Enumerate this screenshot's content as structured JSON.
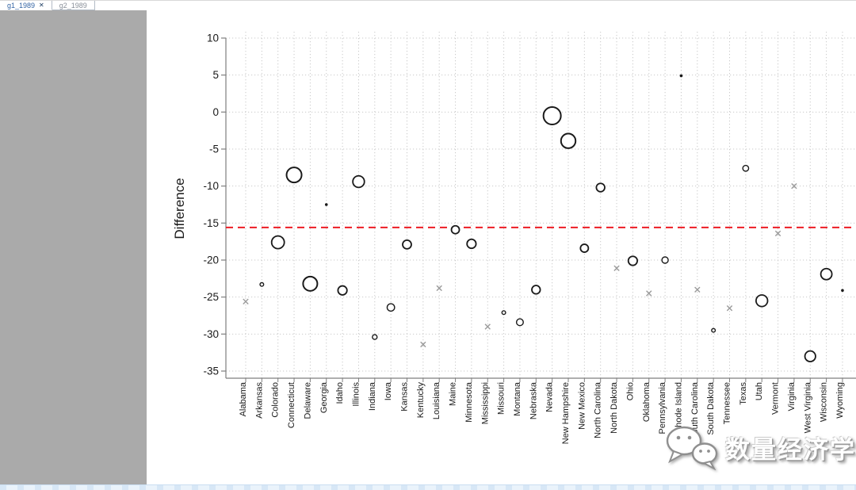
{
  "window": {
    "tabs": [
      {
        "label": "g1_1989",
        "active": true,
        "close_label": "✕"
      },
      {
        "label": "g2_1989",
        "active": false
      }
    ]
  },
  "watermark": {
    "text": "数量经济学",
    "icon": "wechat-logo"
  },
  "colors": {
    "tab_active_text": "#3465a4",
    "tab_inactive_text": "#8a9099",
    "sidebar": "#aaaaaa",
    "axis": "#7f7f7f",
    "grid": "#c9c9c9",
    "tick_label": "#1a1a1a",
    "marker": "#1a1a1a",
    "x_marker": "#9b9b9b",
    "refline": "#ed1c24",
    "bottom_strip": "#eaf3fb"
  },
  "chart_data": {
    "type": "scatter",
    "title": "",
    "xlabel": "",
    "ylabel": "Difference",
    "ylim": [
      -35,
      10
    ],
    "yticks": [
      10,
      5,
      0,
      -5,
      -10,
      -15,
      -20,
      -25,
      -30,
      -35
    ],
    "grid": "dotted-both",
    "legend": "none",
    "reference_line": {
      "value": -15.6,
      "style": "dashed",
      "color": "#ed1c24"
    },
    "marker_note": "hollow circles of varying size, small filled dots, and gray x markers",
    "points": [
      {
        "state": "Alabama",
        "value": -25.6,
        "marker": "x"
      },
      {
        "state": "Arkansas",
        "value": -23.3,
        "marker": "circle",
        "r": 2.3
      },
      {
        "state": "Colorado",
        "value": -17.6,
        "marker": "circle",
        "r": 8.0
      },
      {
        "state": "Connecticut",
        "value": -8.5,
        "marker": "circle",
        "r": 9.5
      },
      {
        "state": "Delaware",
        "value": -23.2,
        "marker": "circle",
        "r": 9.0
      },
      {
        "state": "Georgia",
        "value": -12.5,
        "marker": "dot",
        "r": 1.8
      },
      {
        "state": "Idaho",
        "value": -24.1,
        "marker": "circle",
        "r": 5.7
      },
      {
        "state": "Illinois",
        "value": -9.4,
        "marker": "circle",
        "r": 7.3
      },
      {
        "state": "Indiana",
        "value": -30.4,
        "marker": "circle",
        "r": 3.0
      },
      {
        "state": "Iowa",
        "value": -26.4,
        "marker": "circle",
        "r": 4.7
      },
      {
        "state": "Kansas",
        "value": -17.9,
        "marker": "circle",
        "r": 5.5
      },
      {
        "state": "Kentucky",
        "value": -31.4,
        "marker": "x"
      },
      {
        "state": "Louisiana",
        "value": -23.8,
        "marker": "x"
      },
      {
        "state": "Maine",
        "value": -15.9,
        "marker": "circle",
        "r": 5.0
      },
      {
        "state": "Minnesota",
        "value": -17.8,
        "marker": "circle",
        "r": 5.7
      },
      {
        "state": "Mississippi",
        "value": -29.0,
        "marker": "x"
      },
      {
        "state": "Missouri",
        "value": -27.1,
        "marker": "circle",
        "r": 2.3
      },
      {
        "state": "Montana",
        "value": -28.4,
        "marker": "circle",
        "r": 4.3
      },
      {
        "state": "Nebraska",
        "value": -24.0,
        "marker": "circle",
        "r": 5.3
      },
      {
        "state": "Nevada",
        "value": -0.5,
        "marker": "circle",
        "r": 11.0
      },
      {
        "state": "New Hampshire",
        "value": -3.9,
        "marker": "circle",
        "r": 9.2
      },
      {
        "state": "New Mexico",
        "value": -18.4,
        "marker": "circle",
        "r": 5.0
      },
      {
        "state": "North Carolina",
        "value": -10.2,
        "marker": "circle",
        "r": 5.3
      },
      {
        "state": "North Dakota",
        "value": -21.1,
        "marker": "x"
      },
      {
        "state": "Ohio",
        "value": -20.1,
        "marker": "circle",
        "r": 5.7
      },
      {
        "state": "Oklahoma",
        "value": -24.5,
        "marker": "x"
      },
      {
        "state": "Pennsylvania",
        "value": -20.0,
        "marker": "circle",
        "r": 4.0
      },
      {
        "state": "Rhode Island",
        "value": 4.9,
        "marker": "dot",
        "r": 1.8
      },
      {
        "state": "South Carolina",
        "value": -24.0,
        "marker": "x"
      },
      {
        "state": "South Dakota",
        "value": -29.5,
        "marker": "circle",
        "r": 2.3
      },
      {
        "state": "Tennessee",
        "value": -26.5,
        "marker": "x"
      },
      {
        "state": "Texas",
        "value": -7.6,
        "marker": "circle",
        "r": 3.7
      },
      {
        "state": "Utah",
        "value": -25.5,
        "marker": "circle",
        "r": 7.3
      },
      {
        "state": "Vermont",
        "value": -16.4,
        "marker": "x"
      },
      {
        "state": "Virginia",
        "value": -10.0,
        "marker": "x"
      },
      {
        "state": "West Virginia",
        "value": -33.0,
        "marker": "circle",
        "r": 6.7
      },
      {
        "state": "Wisconsin",
        "value": -21.9,
        "marker": "circle",
        "r": 7.0
      },
      {
        "state": "Wyoming",
        "value": -24.1,
        "marker": "dot",
        "r": 1.8
      }
    ]
  }
}
